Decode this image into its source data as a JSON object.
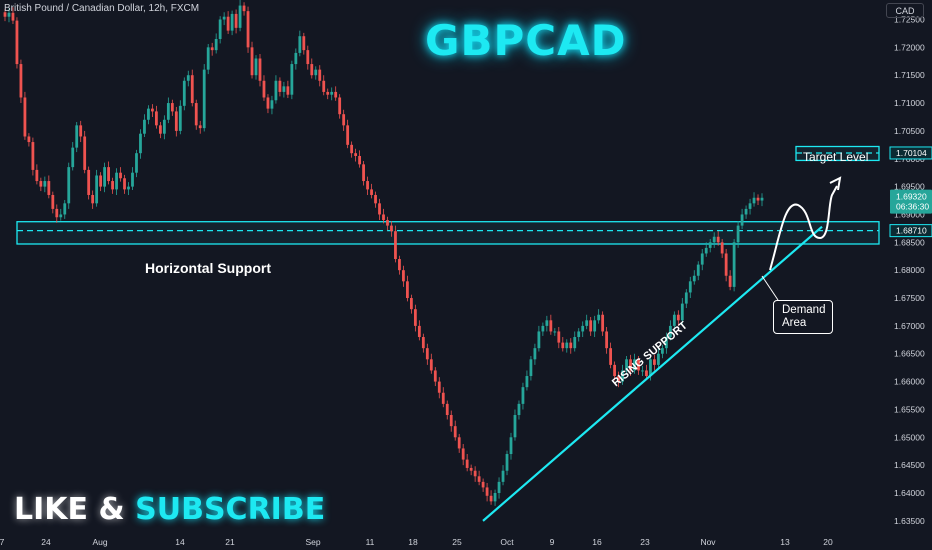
{
  "header": {
    "symbol_line": "British Pound / Canadian Dollar, 12h, FXCM",
    "currency_button": "CAD"
  },
  "headline": "GBPCAD",
  "cta": {
    "like": "LIKE",
    "amp": "&",
    "subscribe": "SUBSCRIBE"
  },
  "annotations": {
    "target_level": "Target Level",
    "horizontal_support": "Horizontal Support",
    "demand_line1": "Demand",
    "demand_line2": "Area",
    "rising_support": "RISING SUPPORT"
  },
  "colors": {
    "background": "#131722",
    "bull": "#26a69a",
    "bear": "#ef5350",
    "accent_cyan": "#1de9f2",
    "axis_text": "#d1d4dc"
  },
  "chart_data": {
    "type": "candlestick",
    "symbol": "GBPCAD",
    "timeframe": "12h",
    "ylim": [
      1.633,
      1.7285
    ],
    "y_ticks": [
      1.635,
      1.64,
      1.645,
      1.65,
      1.655,
      1.66,
      1.665,
      1.67,
      1.675,
      1.68,
      1.685,
      1.69,
      1.695,
      1.7,
      1.705,
      1.71,
      1.715,
      1.72,
      1.725
    ],
    "y_tick_labels": [
      "1.63500",
      "1.64000",
      "1.64500",
      "1.65000",
      "1.65500",
      "1.66000",
      "1.66500",
      "1.67000",
      "1.67500",
      "1.68000",
      "1.68500",
      "1.69000",
      "1.69500",
      "1.70000",
      "1.70500",
      "1.71000",
      "1.71500",
      "1.72000",
      "1.72500"
    ],
    "x_tick_labels": [
      "7",
      "24",
      "Aug",
      "14",
      "21",
      "Sep",
      "11",
      "18",
      "25",
      "Oct",
      "9",
      "16",
      "23",
      "Nov",
      "13",
      "20"
    ],
    "price_markers": [
      {
        "label": "1.70104",
        "value": 1.70104,
        "kind": "target"
      },
      {
        "label": "1.69320",
        "value": 1.6932,
        "kind": "last",
        "countdown": "06:36:30"
      },
      {
        "label": "1.68710",
        "value": 1.6871,
        "kind": "support"
      }
    ],
    "zones": [
      {
        "name": "horizontal_support",
        "from": 1.6847,
        "to": 1.6887,
        "mid": 1.6871
      },
      {
        "name": "target",
        "from": 1.6997,
        "to": 1.7022,
        "mid": 1.70104
      }
    ],
    "trendline": {
      "from_index": 123,
      "from_value": 1.635,
      "to_index": 209,
      "to_value": 1.6878
    },
    "closes": [
      1.7255,
      1.7262,
      1.7248,
      1.717,
      1.711,
      1.704,
      1.703,
      1.698,
      1.696,
      1.695,
      1.696,
      1.6935,
      1.691,
      1.6895,
      1.69,
      1.692,
      1.6985,
      1.702,
      1.706,
      1.704,
      1.698,
      1.6935,
      1.692,
      1.697,
      1.695,
      1.6985,
      1.696,
      1.6945,
      1.6975,
      1.6965,
      1.6945,
      1.695,
      1.6975,
      1.701,
      1.7045,
      1.707,
      1.709,
      1.7085,
      1.706,
      1.7045,
      1.707,
      1.71,
      1.7085,
      1.705,
      1.7095,
      1.714,
      1.715,
      1.71,
      1.706,
      1.7055,
      1.716,
      1.72,
      1.7195,
      1.7215,
      1.725,
      1.7255,
      1.723,
      1.726,
      1.7235,
      1.7275,
      1.7265,
      1.72,
      1.715,
      1.718,
      1.714,
      1.711,
      1.709,
      1.7105,
      1.714,
      1.712,
      1.713,
      1.7115,
      1.717,
      1.719,
      1.722,
      1.7195,
      1.717,
      1.715,
      1.716,
      1.714,
      1.712,
      1.7115,
      1.712,
      1.711,
      1.708,
      1.706,
      1.7025,
      1.701,
      1.7005,
      1.699,
      1.696,
      1.6945,
      1.6935,
      1.692,
      1.69,
      1.689,
      1.688,
      1.687,
      1.682,
      1.68,
      1.678,
      1.675,
      1.673,
      1.67,
      1.668,
      1.666,
      1.664,
      1.662,
      1.66,
      1.658,
      1.656,
      1.654,
      1.652,
      1.65,
      1.648,
      1.646,
      1.6445,
      1.644,
      1.643,
      1.642,
      1.641,
      1.6395,
      1.6385,
      1.64,
      1.642,
      1.644,
      1.647,
      1.65,
      1.654,
      1.656,
      1.659,
      1.661,
      1.664,
      1.666,
      1.669,
      1.67,
      1.671,
      1.669,
      1.669,
      1.667,
      1.666,
      1.667,
      1.666,
      1.668,
      1.669,
      1.67,
      1.671,
      1.669,
      1.671,
      1.672,
      1.669,
      1.666,
      1.663,
      1.661,
      1.66,
      1.662,
      1.664,
      1.662,
      1.664,
      1.662,
      1.662,
      1.661,
      1.664,
      1.663,
      1.665,
      1.666,
      1.668,
      1.67,
      1.672,
      1.671,
      1.674,
      1.676,
      1.678,
      1.679,
      1.681,
      1.683,
      1.684,
      1.685,
      1.686,
      1.685,
      1.683,
      1.679,
      1.677,
      1.685,
      1.688,
      1.69,
      1.691,
      1.692,
      1.693,
      1.6925,
      1.693
    ]
  }
}
